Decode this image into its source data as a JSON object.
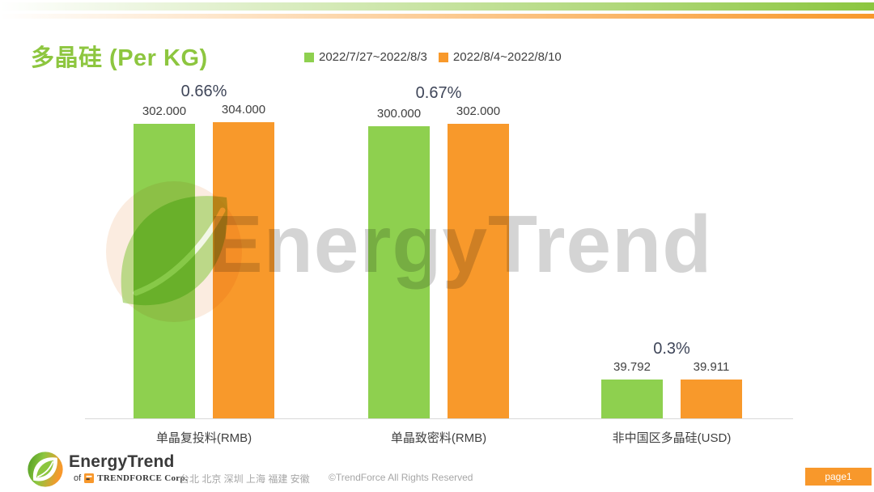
{
  "header": {
    "title": "多晶硅 (Per KG)",
    "legend": [
      {
        "label": "2022/7/27~2022/8/3",
        "color": "#8ED04F"
      },
      {
        "label": "2022/8/4~2022/8/10",
        "color": "#F8992B"
      }
    ]
  },
  "chart_data": {
    "type": "bar",
    "title": "多晶硅 (Per KG)",
    "categories": [
      "单晶复投料(RMB)",
      "单晶致密料(RMB)",
      "非中国区多晶硅(USD)"
    ],
    "series": [
      {
        "name": "2022/7/27~2022/8/3",
        "color": "#8ED04F",
        "values": [
          302.0,
          300.0,
          39.792
        ],
        "labels": [
          "302.000",
          "300.000",
          "39.792"
        ]
      },
      {
        "name": "2022/8/4~2022/8/10",
        "color": "#F8992B",
        "values": [
          304.0,
          302.0,
          39.911
        ],
        "labels": [
          "304.000",
          "302.000",
          "39.911"
        ]
      }
    ],
    "change_labels": [
      "0.66%",
      "0.67%",
      "0.3%"
    ],
    "ylim": [
      0,
      304
    ],
    "grid": false,
    "legend_position": "top",
    "xlabel": "",
    "ylabel": ""
  },
  "watermark": {
    "text": "EnergyTrend"
  },
  "footer": {
    "logo_name": "EnergyTrend",
    "of_label": "of",
    "trendforce_label": "TRENDFORCE Corp.",
    "cities": "台北 北京 深圳 上海 福建 安徽",
    "copyright": "©TrendForce All Rights Reserved",
    "page_label": "page1"
  }
}
